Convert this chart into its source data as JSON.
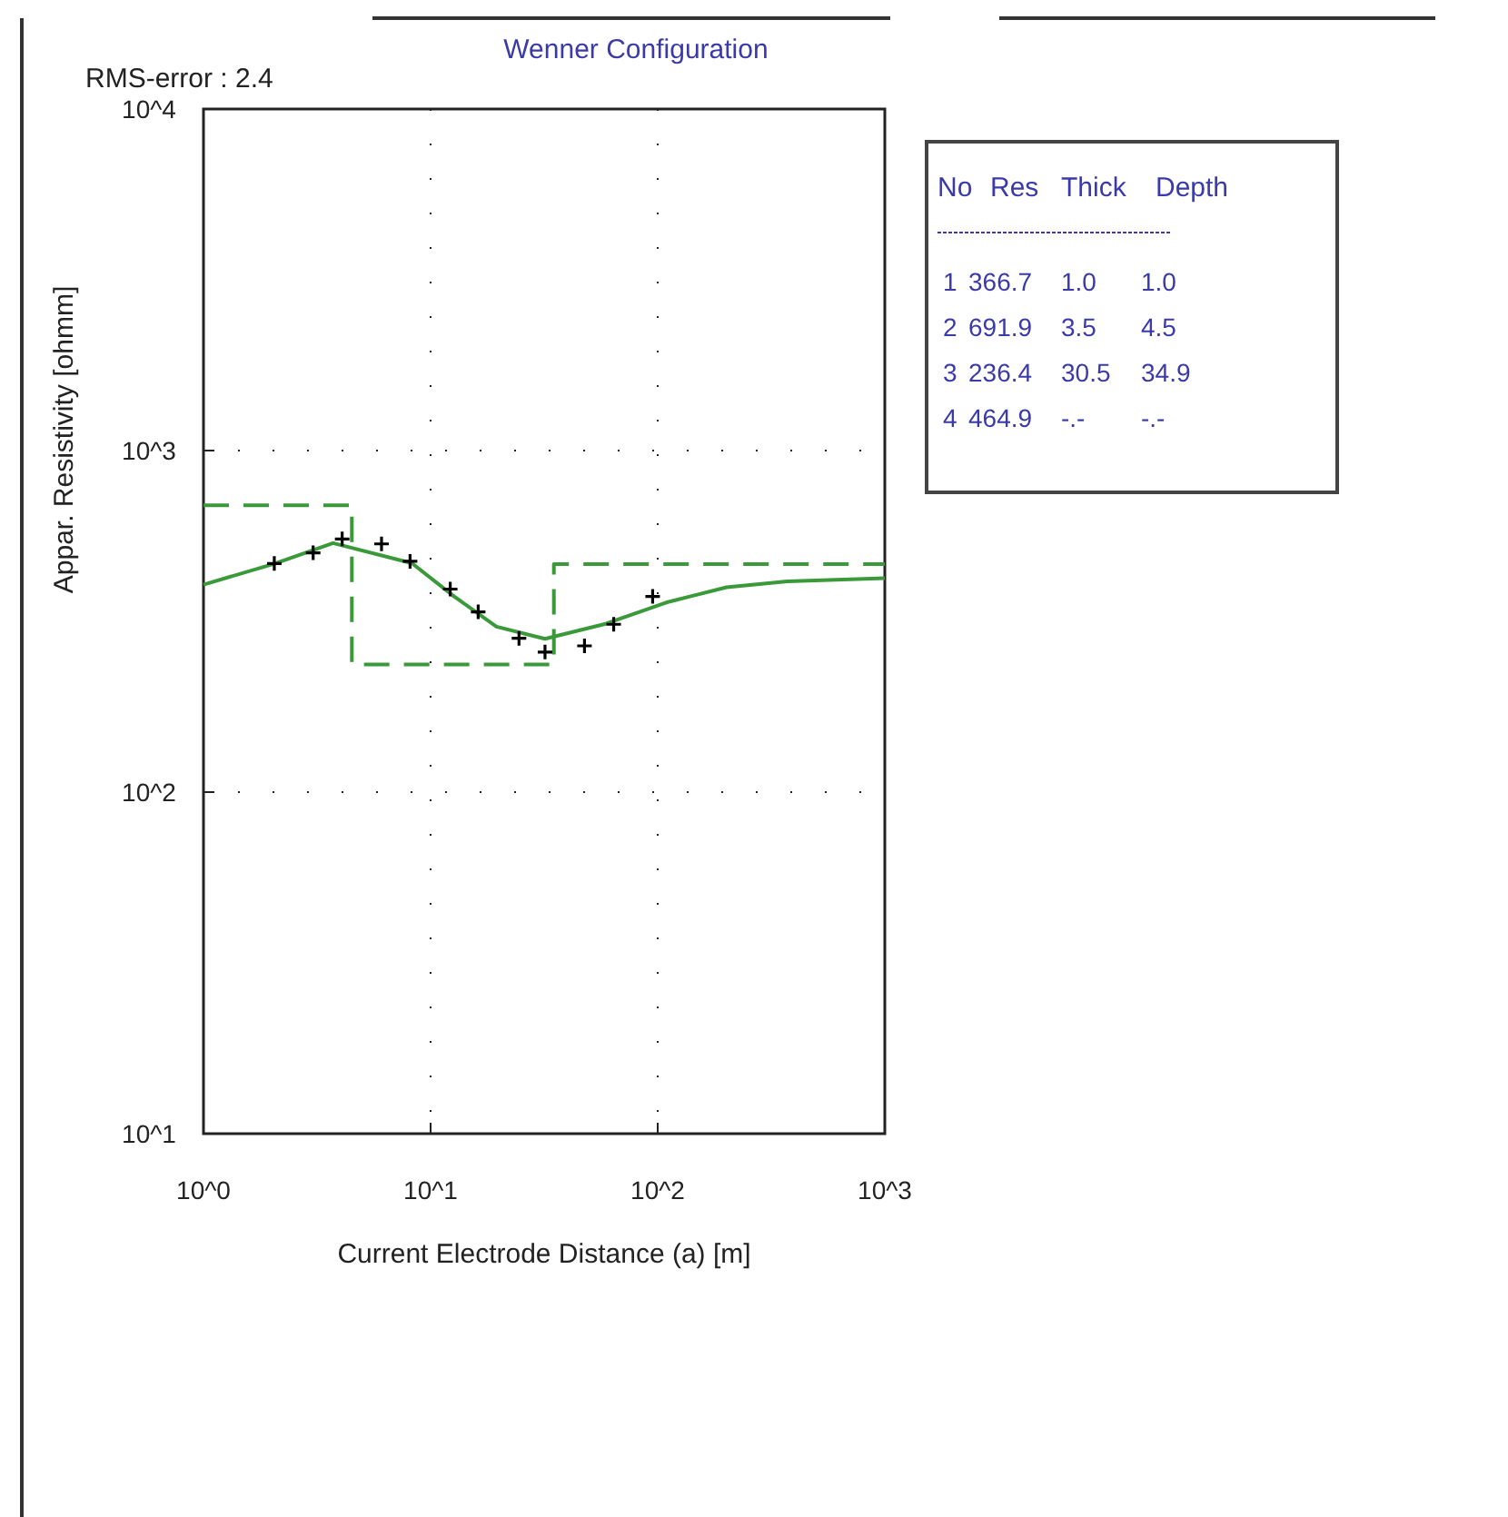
{
  "chart_data": {
    "type": "line",
    "title": "Wenner Configuration",
    "xlabel": "Current Electrode Distance (a) [m]",
    "ylabel": "Appar. Resistivity [ohmm]",
    "log": "xy",
    "grid": true,
    "xlim": [
      1,
      1000
    ],
    "xticks": [
      {
        "value": 1,
        "label": "10^0"
      },
      {
        "value": 10,
        "label": "10^1"
      },
      {
        "value": 100,
        "label": "10^2"
      },
      {
        "value": 1000,
        "label": "10^3"
      }
    ],
    "ylim": [
      10,
      10000
    ],
    "yticks": [
      {
        "value": 10,
        "label": "10^1"
      },
      {
        "value": 100,
        "label": "10^2"
      },
      {
        "value": 1000,
        "label": "10^3"
      },
      {
        "value": 10000,
        "label": "10^4"
      }
    ],
    "series": [
      {
        "line_style": "dashed",
        "color": "#3a9a3a",
        "x": [
          1,
          4.5,
          4.5,
          34.9,
          34.9,
          1000
        ],
        "values": [
          691.9,
          691.9,
          236.4,
          236.4,
          464.9,
          464.9
        ]
      },
      {
        "line_style": "solid",
        "color": "#3a9a3a",
        "x": [
          1,
          2.05,
          3.72,
          8.27,
          12.7,
          19.5,
          31.9,
          59,
          109,
          201,
          372,
          1000
        ],
        "values": [
          405,
          466,
          536,
          468,
          374,
          305,
          281,
          311,
          359,
          398,
          414,
          423
        ]
      },
      {
        "type": "scatter",
        "marker": "cross",
        "color": "#000000",
        "x": [
          2.05,
          3.04,
          4.08,
          6.08,
          8.12,
          12.2,
          16.2,
          24.5,
          31.9,
          47.6,
          64,
          95
        ],
        "values": [
          467,
          502,
          551,
          533,
          474,
          393,
          337,
          282,
          257,
          268,
          310,
          374
        ]
      }
    ],
    "annotations": [
      "RMS-error :  2.4",
      "No   Res  Thick  Depth",
      "1  366.7   1.0    1.0",
      "2  691.9   3.5    4.5",
      "3  236.4   30.5   34.9",
      "4  464.9   -.-    -.-"
    ]
  }
}
